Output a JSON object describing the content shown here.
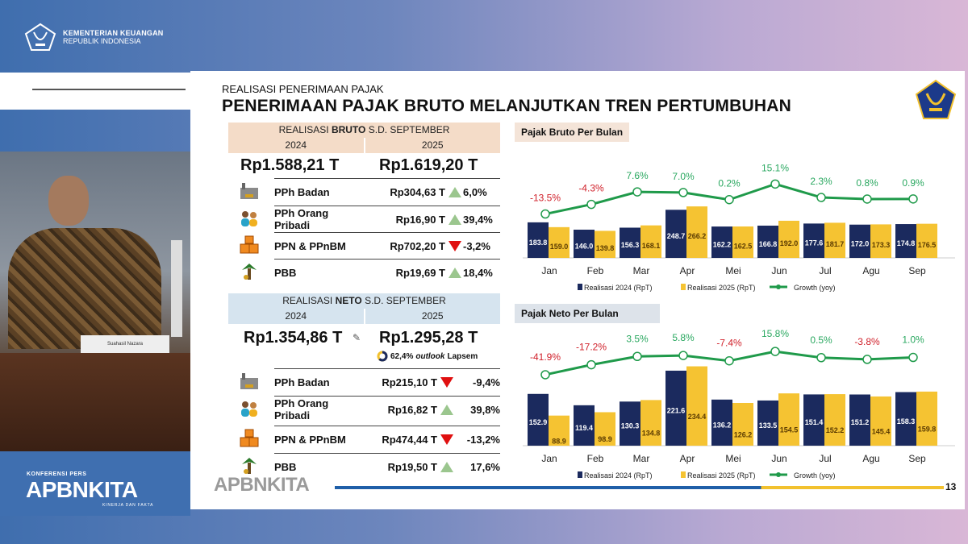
{
  "brand": {
    "line1": "KEMENTERIAN KEUANGAN",
    "line2": "REPUBLIK INDONESIA"
  },
  "event": {
    "kicker": "KONFERENSI PERS",
    "name": "APBNKITA",
    "tagline": "KINERJA DAN FAKTA"
  },
  "video": {
    "nameplate": "Suahasil Nazara"
  },
  "slide": {
    "kicker": "REALISASI PENERIMAAN PAJAK",
    "title": "PENERIMAAN PAJAK BRUTO MELANJUTKAN TREN PERTUMBUHAN",
    "watermark": "APBNKITA",
    "page_number": "13",
    "bruto": {
      "header_pre": "REALISASI ",
      "header_bold": "BRUTO",
      "header_post": " S.D. SEPTEMBER",
      "year1": "2024",
      "year2": "2025",
      "total_2024": "Rp1.588,21 T",
      "total_2025": "Rp1.619,20 T",
      "rows": [
        {
          "label": "PPh Badan",
          "value": "Rp304,63 T",
          "change": "6,0%",
          "direction": "up",
          "icon": "factory-icon"
        },
        {
          "label": "PPh Orang Pribadi",
          "value": "Rp16,90 T",
          "change": "39,4%",
          "direction": "up",
          "icon": "people-icon"
        },
        {
          "label": "PPN & PPnBM",
          "value": "Rp702,20 T",
          "change": "-3,2%",
          "direction": "down",
          "icon": "boxes-icon"
        },
        {
          "label": "PBB",
          "value": "Rp19,69 T",
          "change": "18,4%",
          "direction": "up",
          "icon": "palm-tree-icon"
        }
      ]
    },
    "neto": {
      "header_pre": "REALISASI ",
      "header_bold": "NETO",
      "header_post": " S.D. SEPTEMBER",
      "year1": "2024",
      "year2": "2025",
      "total_2024": "Rp1.354,86 T",
      "total_2025": "Rp1.295,28 T",
      "outlook_pct": "62,4%",
      "outlook_word": "outlook",
      "outlook_suffix": "Lapsem",
      "outlook_fraction": 0.624,
      "rows": [
        {
          "label": "PPh Badan",
          "value": "Rp215,10 T",
          "change": "-9,4%",
          "direction": "down",
          "icon": "factory-icon"
        },
        {
          "label": "PPh Orang Pribadi",
          "value": "Rp16,82 T",
          "change": "39,8%",
          "direction": "up",
          "icon": "people-icon"
        },
        {
          "label": "PPN & PPnBM",
          "value": "Rp474,44 T",
          "change": "-13,2%",
          "direction": "down",
          "icon": "boxes-icon"
        },
        {
          "label": "PBB",
          "value": "Rp19,50 T",
          "change": "17,6%",
          "direction": "up",
          "icon": "palm-tree-icon"
        }
      ]
    }
  },
  "colors": {
    "bar2024": "#1b2a5e",
    "bar2025": "#f5c332",
    "growth": "#1f9a4a",
    "neg": "#d0202a",
    "pos": "#2aa860",
    "bruto_band": "#f4dcc8",
    "neto_band": "#d6e4ef"
  },
  "chart_data": [
    {
      "type": "bar",
      "title": "Pajak Bruto Per Bulan",
      "categories": [
        "Jan",
        "Feb",
        "Mar",
        "Apr",
        "Mei",
        "Jun",
        "Jul",
        "Agu",
        "Sep"
      ],
      "series": [
        {
          "name": "Realisasi 2024 (RpT)",
          "values": [
            183.8,
            146.0,
            156.3,
            248.7,
            162.2,
            166.8,
            177.6,
            172.0,
            174.8
          ]
        },
        {
          "name": "Realisasi 2025 (RpT)",
          "values": [
            159.0,
            139.8,
            168.1,
            266.2,
            162.5,
            192.0,
            181.7,
            173.3,
            176.5
          ]
        },
        {
          "name": "Growth (yoy)",
          "type": "line",
          "values": [
            -13.5,
            -4.3,
            7.6,
            7.0,
            0.2,
            15.1,
            2.3,
            0.8,
            0.9
          ],
          "labels": [
            "-13.5%",
            "-4.3%",
            "7.6%",
            "7.0%",
            "0.2%",
            "15.1%",
            "2.3%",
            "0.8%",
            "0.9%"
          ]
        }
      ],
      "legend": "bottom",
      "grid": false
    },
    {
      "type": "bar",
      "title": "Pajak Neto Per Bulan",
      "categories": [
        "Jan",
        "Feb",
        "Mar",
        "Apr",
        "Mei",
        "Jun",
        "Jul",
        "Agu",
        "Sep"
      ],
      "series": [
        {
          "name": "Realisasi 2024 (RpT)",
          "values": [
            152.9,
            119.4,
            130.3,
            221.6,
            136.2,
            133.5,
            151.4,
            151.2,
            158.3
          ]
        },
        {
          "name": "Realisasi 2025 (RpT)",
          "values": [
            88.9,
            98.9,
            134.8,
            234.4,
            126.2,
            154.5,
            152.2,
            145.4,
            159.8
          ]
        },
        {
          "name": "Growth (yoy)",
          "type": "line",
          "values": [
            -41.9,
            -17.2,
            3.5,
            5.8,
            -7.4,
            15.8,
            0.5,
            -3.8,
            1.0
          ],
          "labels": [
            "-41.9%",
            "-17.2%",
            "3.5%",
            "5.8%",
            "-7.4%",
            "15.8%",
            "0.5%",
            "-3.8%",
            "1.0%"
          ]
        }
      ],
      "legend": "bottom",
      "grid": false
    }
  ]
}
